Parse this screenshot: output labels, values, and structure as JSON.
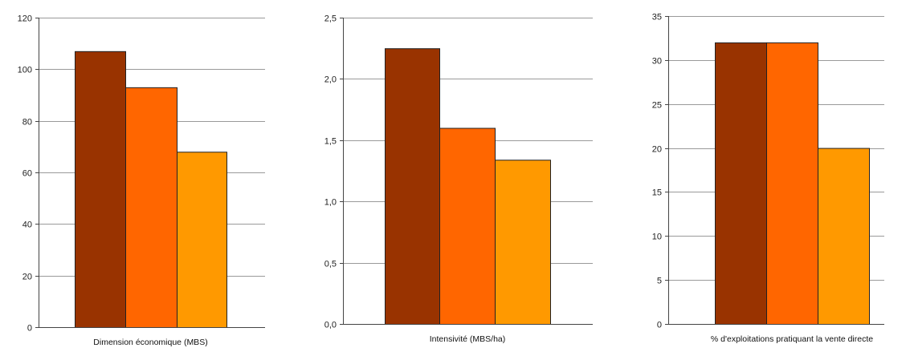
{
  "chart_data": [
    {
      "type": "bar",
      "xlabel": "Dimension économique (MBS)",
      "ylim": [
        0,
        120
      ],
      "ticks": [
        "0",
        "20",
        "40",
        "60",
        "80",
        "100",
        "120"
      ],
      "tick_values": [
        0,
        20,
        40,
        60,
        80,
        100,
        120
      ],
      "values": [
        107,
        93,
        68
      ],
      "colors": [
        "#993300",
        "#ff6600",
        "#ff9900"
      ],
      "grid": true
    },
    {
      "type": "bar",
      "xlabel": "Intensivité (MBS/ha)",
      "ylim": [
        0,
        2.5
      ],
      "ticks": [
        "0,0",
        "0,5",
        "1,0",
        "1,5",
        "2,0",
        "2,5"
      ],
      "tick_values": [
        0,
        0.5,
        1.0,
        1.5,
        2.0,
        2.5
      ],
      "values": [
        2.25,
        1.6,
        1.34
      ],
      "colors": [
        "#993300",
        "#ff6600",
        "#ff9900"
      ],
      "grid": true
    },
    {
      "type": "bar",
      "xlabel": "% d'exploitations pratiquant la vente directe",
      "ylim": [
        0,
        35
      ],
      "ticks": [
        "0",
        "5",
        "10",
        "15",
        "20",
        "25",
        "30",
        "35"
      ],
      "tick_values": [
        0,
        5,
        10,
        15,
        20,
        25,
        30,
        35
      ],
      "values": [
        32,
        32,
        20
      ],
      "colors": [
        "#993300",
        "#ff6600",
        "#ff9900"
      ],
      "grid": true
    }
  ]
}
